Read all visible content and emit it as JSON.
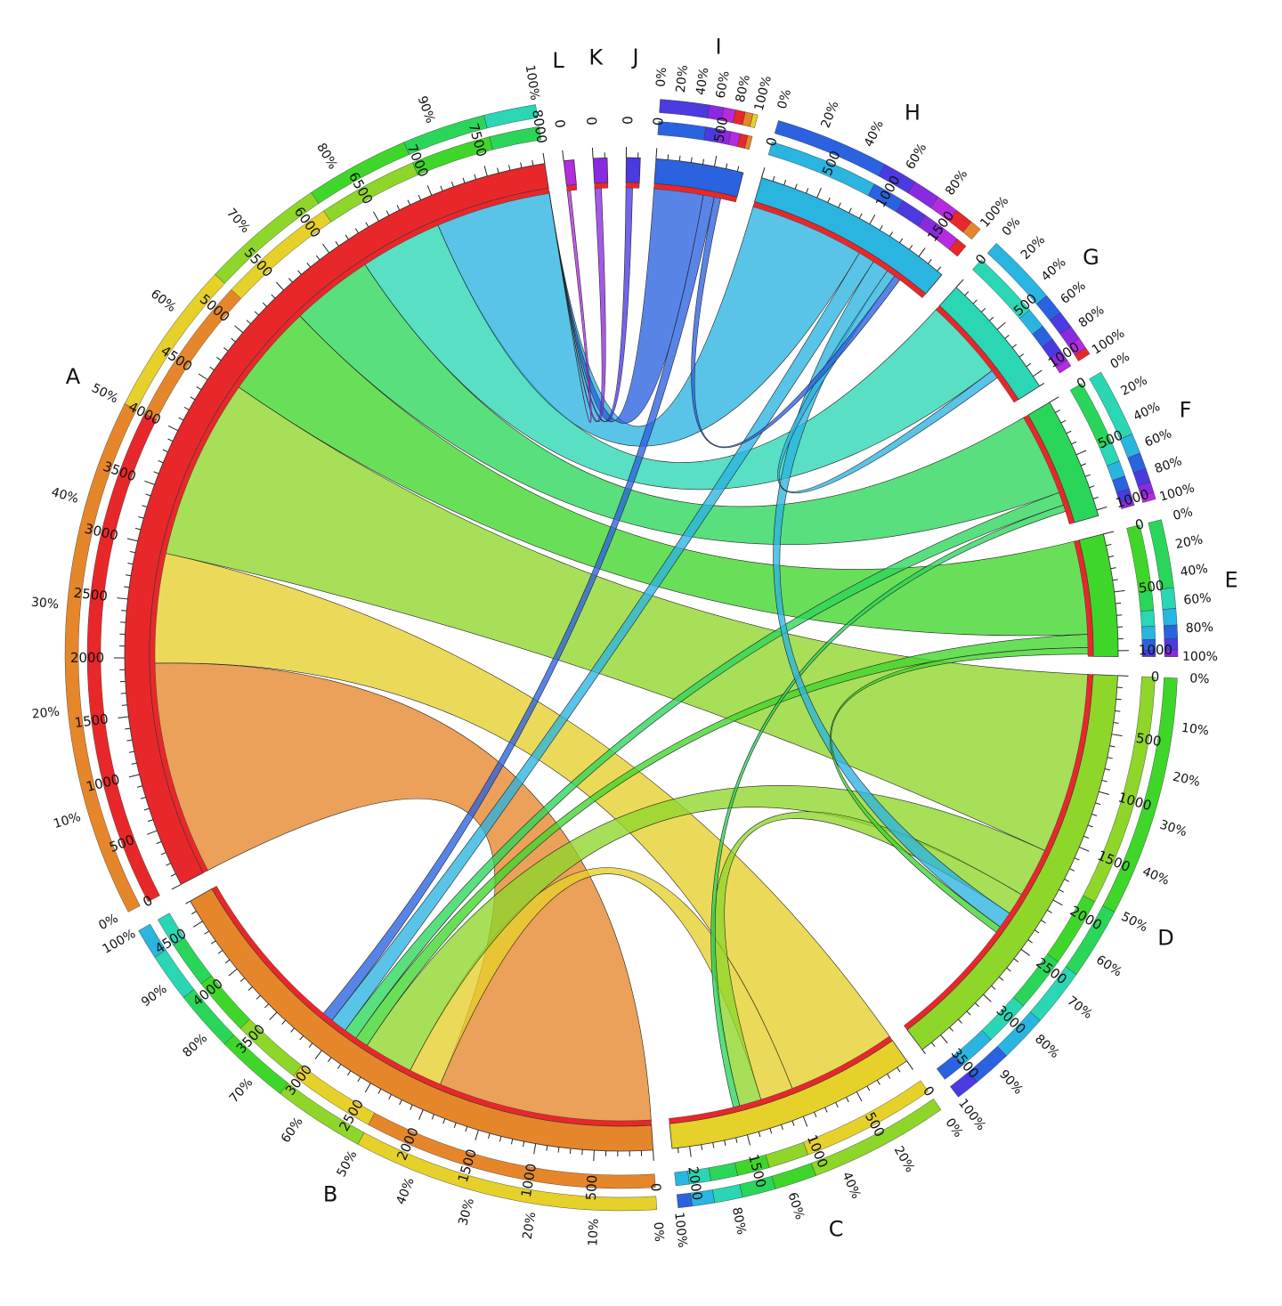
{
  "chart_data": {
    "type": "chord",
    "segments": [
      {
        "id": "A",
        "label": "A",
        "color": "#e8272a",
        "size": 8000,
        "tick_step": 500,
        "ticks": [
          "0",
          "500",
          "1000",
          "1500",
          "2000",
          "2500",
          "3000",
          "3500",
          "4000",
          "4500",
          "5000",
          "5500",
          "6000",
          "6500",
          "7000",
          "7500",
          "8000"
        ]
      },
      {
        "id": "B",
        "label": "B",
        "color": "#e6862a",
        "size": 4700,
        "tick_step": 500,
        "ticks": [
          "0",
          "500",
          "1000",
          "1500",
          "2000",
          "2500",
          "3000",
          "3500",
          "4000",
          "4500"
        ]
      },
      {
        "id": "C",
        "label": "C",
        "color": "#e6d02a",
        "size": 2150,
        "tick_step": 500,
        "ticks": [
          "0",
          "500",
          "1000",
          "1500",
          "2000"
        ]
      },
      {
        "id": "D",
        "label": "D",
        "color": "#8ed62a",
        "size": 3700,
        "tick_step": 500,
        "ticks": [
          "0",
          "500",
          "1000",
          "1500",
          "2000",
          "2500",
          "3000",
          "3500"
        ]
      },
      {
        "id": "E",
        "label": "E",
        "color": "#3fd62a",
        "size": 1050,
        "tick_step": 500,
        "ticks": [
          "0",
          "500",
          "1000"
        ]
      },
      {
        "id": "F",
        "label": "F",
        "color": "#2ad65a",
        "size": 1050,
        "tick_step": 500,
        "ticks": [
          "0",
          "500",
          "1000"
        ]
      },
      {
        "id": "G",
        "label": "G",
        "color": "#2ad6b4",
        "size": 1100,
        "tick_step": 500,
        "ticks": [
          "0",
          "500",
          "1000"
        ]
      },
      {
        "id": "H",
        "label": "H",
        "color": "#2ab4e0",
        "size": 1750,
        "tick_step": 500,
        "ticks": [
          "0",
          "500",
          "1000",
          "1500"
        ]
      },
      {
        "id": "I",
        "label": "I",
        "color": "#2a62e0",
        "size": 750,
        "tick_step": 500,
        "ticks": [
          "0",
          "500"
        ]
      },
      {
        "id": "J",
        "label": "J",
        "color": "#4a3ae0",
        "size": 120,
        "tick_step": 500,
        "ticks": [
          "0"
        ]
      },
      {
        "id": "K",
        "label": "K",
        "color": "#8a2ae0",
        "size": 120,
        "tick_step": 500,
        "ticks": [
          "0"
        ]
      },
      {
        "id": "L",
        "label": "L",
        "color": "#b62ae0",
        "size": 60,
        "tick_step": 500,
        "ticks": [
          "0"
        ]
      }
    ],
    "flows": [
      {
        "from": "A",
        "to": "B",
        "value": 1950
      },
      {
        "from": "A",
        "to": "C",
        "value": 1000
      },
      {
        "from": "A",
        "to": "D",
        "value": 1650
      },
      {
        "from": "A",
        "to": "E",
        "value": 850
      },
      {
        "from": "A",
        "to": "F",
        "value": 750
      },
      {
        "from": "A",
        "to": "G",
        "value": 750
      },
      {
        "from": "A",
        "to": "H",
        "value": 1050
      },
      {
        "from": "A",
        "to": "I",
        "value": 450
      },
      {
        "from": "A",
        "to": "J",
        "value": 60
      },
      {
        "from": "A",
        "to": "K",
        "value": 60
      },
      {
        "from": "A",
        "to": "L",
        "value": 30
      },
      {
        "from": "B",
        "to": "C",
        "value": 300
      },
      {
        "from": "B",
        "to": "D",
        "value": 450
      },
      {
        "from": "B",
        "to": "E",
        "value": 120
      },
      {
        "from": "B",
        "to": "F",
        "value": 120
      },
      {
        "from": "B",
        "to": "H",
        "value": 150
      },
      {
        "from": "B",
        "to": "I",
        "value": 100
      },
      {
        "from": "C",
        "to": "D",
        "value": 200
      },
      {
        "from": "C",
        "to": "F",
        "value": 60
      },
      {
        "from": "D",
        "to": "H",
        "value": 150
      },
      {
        "from": "D",
        "to": "E",
        "value": 60
      },
      {
        "from": "G",
        "to": "H",
        "value": 80
      },
      {
        "from": "H",
        "to": "I",
        "value": 60
      }
    ],
    "percent_ticks": [
      "0%",
      "10%",
      "20%",
      "30%",
      "40%",
      "50%",
      "60%",
      "70%",
      "80%",
      "90%",
      "100%"
    ],
    "percent_ticks_short": [
      "0%",
      "20%",
      "40%",
      "60%",
      "80%",
      "100%"
    ]
  }
}
